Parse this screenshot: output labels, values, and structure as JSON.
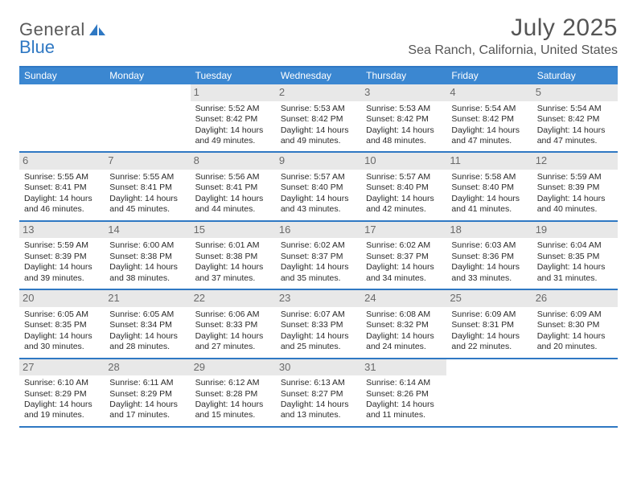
{
  "brand": {
    "word1": "General",
    "word2": "Blue",
    "logo_color": "#2f78c3",
    "text_color": "#5a5a5a"
  },
  "title": "July 2025",
  "location": "Sea Ranch, California, United States",
  "colors": {
    "header_bg": "#3b87d1",
    "border": "#2f78c3",
    "daynum_bg": "#e8e8e8",
    "daynum_fg": "#6a6a6a",
    "body_text": "#2a2a2a",
    "title_text": "#555555"
  },
  "dow": [
    "Sunday",
    "Monday",
    "Tuesday",
    "Wednesday",
    "Thursday",
    "Friday",
    "Saturday"
  ],
  "weeks": [
    [
      {
        "n": "",
        "sr": "",
        "ss": "",
        "d1": "",
        "d2": ""
      },
      {
        "n": "",
        "sr": "",
        "ss": "",
        "d1": "",
        "d2": ""
      },
      {
        "n": "1",
        "sr": "Sunrise: 5:52 AM",
        "ss": "Sunset: 8:42 PM",
        "d1": "Daylight: 14 hours",
        "d2": "and 49 minutes."
      },
      {
        "n": "2",
        "sr": "Sunrise: 5:53 AM",
        "ss": "Sunset: 8:42 PM",
        "d1": "Daylight: 14 hours",
        "d2": "and 49 minutes."
      },
      {
        "n": "3",
        "sr": "Sunrise: 5:53 AM",
        "ss": "Sunset: 8:42 PM",
        "d1": "Daylight: 14 hours",
        "d2": "and 48 minutes."
      },
      {
        "n": "4",
        "sr": "Sunrise: 5:54 AM",
        "ss": "Sunset: 8:42 PM",
        "d1": "Daylight: 14 hours",
        "d2": "and 47 minutes."
      },
      {
        "n": "5",
        "sr": "Sunrise: 5:54 AM",
        "ss": "Sunset: 8:42 PM",
        "d1": "Daylight: 14 hours",
        "d2": "and 47 minutes."
      }
    ],
    [
      {
        "n": "6",
        "sr": "Sunrise: 5:55 AM",
        "ss": "Sunset: 8:41 PM",
        "d1": "Daylight: 14 hours",
        "d2": "and 46 minutes."
      },
      {
        "n": "7",
        "sr": "Sunrise: 5:55 AM",
        "ss": "Sunset: 8:41 PM",
        "d1": "Daylight: 14 hours",
        "d2": "and 45 minutes."
      },
      {
        "n": "8",
        "sr": "Sunrise: 5:56 AM",
        "ss": "Sunset: 8:41 PM",
        "d1": "Daylight: 14 hours",
        "d2": "and 44 minutes."
      },
      {
        "n": "9",
        "sr": "Sunrise: 5:57 AM",
        "ss": "Sunset: 8:40 PM",
        "d1": "Daylight: 14 hours",
        "d2": "and 43 minutes."
      },
      {
        "n": "10",
        "sr": "Sunrise: 5:57 AM",
        "ss": "Sunset: 8:40 PM",
        "d1": "Daylight: 14 hours",
        "d2": "and 42 minutes."
      },
      {
        "n": "11",
        "sr": "Sunrise: 5:58 AM",
        "ss": "Sunset: 8:40 PM",
        "d1": "Daylight: 14 hours",
        "d2": "and 41 minutes."
      },
      {
        "n": "12",
        "sr": "Sunrise: 5:59 AM",
        "ss": "Sunset: 8:39 PM",
        "d1": "Daylight: 14 hours",
        "d2": "and 40 minutes."
      }
    ],
    [
      {
        "n": "13",
        "sr": "Sunrise: 5:59 AM",
        "ss": "Sunset: 8:39 PM",
        "d1": "Daylight: 14 hours",
        "d2": "and 39 minutes."
      },
      {
        "n": "14",
        "sr": "Sunrise: 6:00 AM",
        "ss": "Sunset: 8:38 PM",
        "d1": "Daylight: 14 hours",
        "d2": "and 38 minutes."
      },
      {
        "n": "15",
        "sr": "Sunrise: 6:01 AM",
        "ss": "Sunset: 8:38 PM",
        "d1": "Daylight: 14 hours",
        "d2": "and 37 minutes."
      },
      {
        "n": "16",
        "sr": "Sunrise: 6:02 AM",
        "ss": "Sunset: 8:37 PM",
        "d1": "Daylight: 14 hours",
        "d2": "and 35 minutes."
      },
      {
        "n": "17",
        "sr": "Sunrise: 6:02 AM",
        "ss": "Sunset: 8:37 PM",
        "d1": "Daylight: 14 hours",
        "d2": "and 34 minutes."
      },
      {
        "n": "18",
        "sr": "Sunrise: 6:03 AM",
        "ss": "Sunset: 8:36 PM",
        "d1": "Daylight: 14 hours",
        "d2": "and 33 minutes."
      },
      {
        "n": "19",
        "sr": "Sunrise: 6:04 AM",
        "ss": "Sunset: 8:35 PM",
        "d1": "Daylight: 14 hours",
        "d2": "and 31 minutes."
      }
    ],
    [
      {
        "n": "20",
        "sr": "Sunrise: 6:05 AM",
        "ss": "Sunset: 8:35 PM",
        "d1": "Daylight: 14 hours",
        "d2": "and 30 minutes."
      },
      {
        "n": "21",
        "sr": "Sunrise: 6:05 AM",
        "ss": "Sunset: 8:34 PM",
        "d1": "Daylight: 14 hours",
        "d2": "and 28 minutes."
      },
      {
        "n": "22",
        "sr": "Sunrise: 6:06 AM",
        "ss": "Sunset: 8:33 PM",
        "d1": "Daylight: 14 hours",
        "d2": "and 27 minutes."
      },
      {
        "n": "23",
        "sr": "Sunrise: 6:07 AM",
        "ss": "Sunset: 8:33 PM",
        "d1": "Daylight: 14 hours",
        "d2": "and 25 minutes."
      },
      {
        "n": "24",
        "sr": "Sunrise: 6:08 AM",
        "ss": "Sunset: 8:32 PM",
        "d1": "Daylight: 14 hours",
        "d2": "and 24 minutes."
      },
      {
        "n": "25",
        "sr": "Sunrise: 6:09 AM",
        "ss": "Sunset: 8:31 PM",
        "d1": "Daylight: 14 hours",
        "d2": "and 22 minutes."
      },
      {
        "n": "26",
        "sr": "Sunrise: 6:09 AM",
        "ss": "Sunset: 8:30 PM",
        "d1": "Daylight: 14 hours",
        "d2": "and 20 minutes."
      }
    ],
    [
      {
        "n": "27",
        "sr": "Sunrise: 6:10 AM",
        "ss": "Sunset: 8:29 PM",
        "d1": "Daylight: 14 hours",
        "d2": "and 19 minutes."
      },
      {
        "n": "28",
        "sr": "Sunrise: 6:11 AM",
        "ss": "Sunset: 8:29 PM",
        "d1": "Daylight: 14 hours",
        "d2": "and 17 minutes."
      },
      {
        "n": "29",
        "sr": "Sunrise: 6:12 AM",
        "ss": "Sunset: 8:28 PM",
        "d1": "Daylight: 14 hours",
        "d2": "and 15 minutes."
      },
      {
        "n": "30",
        "sr": "Sunrise: 6:13 AM",
        "ss": "Sunset: 8:27 PM",
        "d1": "Daylight: 14 hours",
        "d2": "and 13 minutes."
      },
      {
        "n": "31",
        "sr": "Sunrise: 6:14 AM",
        "ss": "Sunset: 8:26 PM",
        "d1": "Daylight: 14 hours",
        "d2": "and 11 minutes."
      },
      {
        "n": "",
        "sr": "",
        "ss": "",
        "d1": "",
        "d2": ""
      },
      {
        "n": "",
        "sr": "",
        "ss": "",
        "d1": "",
        "d2": ""
      }
    ]
  ]
}
